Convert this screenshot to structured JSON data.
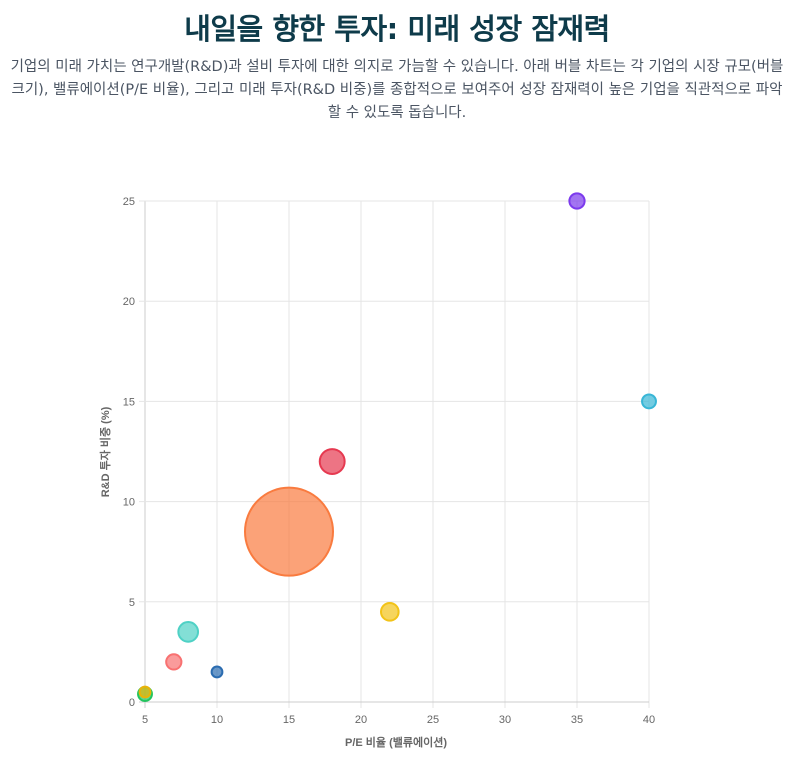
{
  "header": {
    "title": "내일을 향한 투자: 미래 성장 잠재력",
    "description": "기업의 미래 가치는 연구개발(R&D)과 설비 투자에 대한 의지로 가늠할 수 있습니다. 아래 버블 차트는 각 기업의 시장 규모(버블 크기), 밸류에이션(P/E 비율), 그리고 미래 투자(R&D 비중)를 종합적으로 보여주어 성장 잠재력이 높은 기업을 직관적으로 파악할 수 있도록 돕습니다."
  },
  "chart_data": {
    "type": "scatter",
    "variant": "bubble",
    "xlabel": "P/E 비율 (밸류에이션)",
    "ylabel": "R&D 투자 비중 (%)",
    "xlim": [
      5,
      40
    ],
    "ylim": [
      0,
      25
    ],
    "xticks": [
      5,
      10,
      15,
      20,
      25,
      30,
      35,
      40
    ],
    "yticks": [
      0,
      5,
      10,
      15,
      20,
      25
    ],
    "grid": true,
    "legend": "none",
    "points": [
      {
        "x": 15,
        "y": 8.5,
        "size": 100,
        "color": "#f97b3f"
      },
      {
        "x": 18,
        "y": 12,
        "size": 8,
        "color": "#e63950"
      },
      {
        "x": 8,
        "y": 3.5,
        "size": 5,
        "color": "#4fd1c5"
      },
      {
        "x": 22,
        "y": 4.5,
        "size": 4,
        "color": "#f2c318"
      },
      {
        "x": 7,
        "y": 2,
        "size": 3,
        "color": "#f87171"
      },
      {
        "x": 35,
        "y": 25,
        "size": 3,
        "color": "#7c3aed"
      },
      {
        "x": 40,
        "y": 15,
        "size": 2.5,
        "color": "#38b6d6"
      },
      {
        "x": 5,
        "y": 0.4,
        "size": 2.5,
        "color": "#22c55e"
      },
      {
        "x": 10,
        "y": 1.5,
        "size": 1.5,
        "color": "#2b6cb0"
      },
      {
        "x": 5,
        "y": 0.5,
        "size": 1.5,
        "color": "#eab308"
      }
    ]
  }
}
